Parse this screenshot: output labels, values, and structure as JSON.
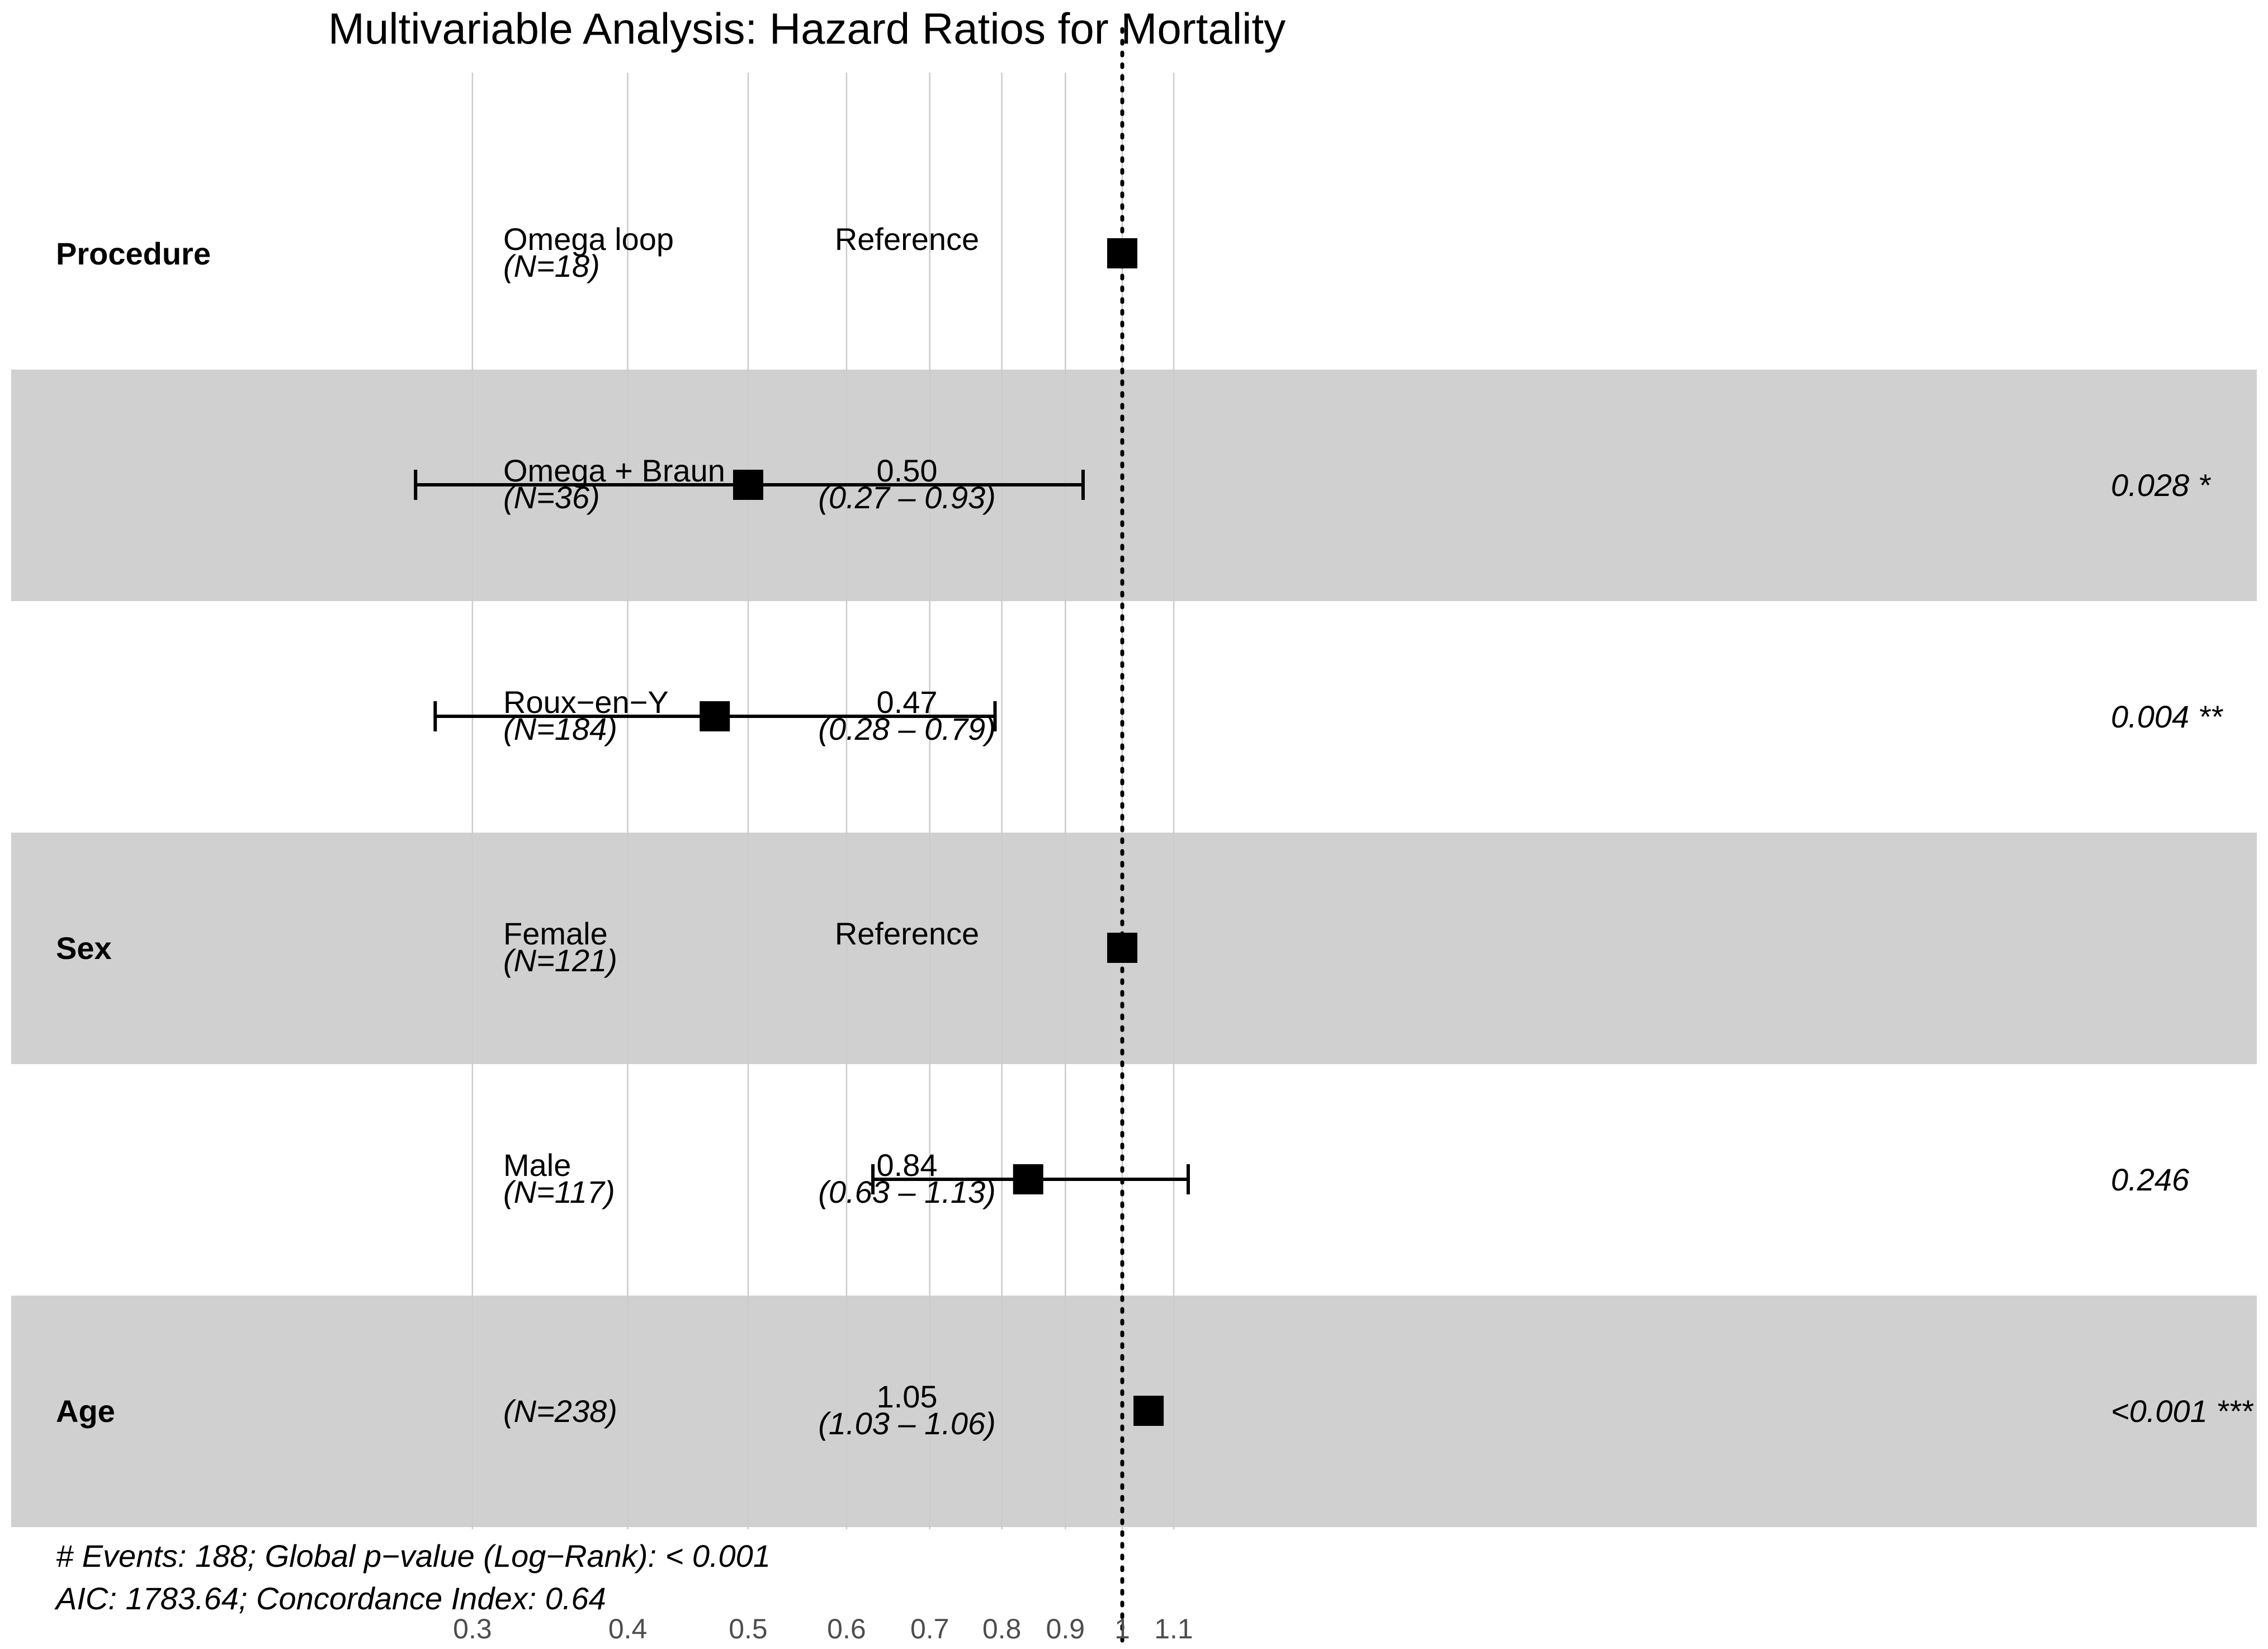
{
  "colors": {
    "band": "#d0d0d0",
    "grid": "#cccccc",
    "mark": "#000000",
    "background": "#ffffff"
  },
  "chart_data": {
    "type": "forest",
    "title": "Multivariable Analysis: Hazard Ratios for Mortality",
    "xscale": "log",
    "xlim": [
      0.27,
      1.27
    ],
    "reference_line": 1,
    "ticks": [
      0.3,
      0.4,
      0.5,
      0.6,
      0.7,
      0.8,
      0.9,
      1,
      1.1
    ],
    "tick_labels": [
      "0.3",
      "0.4",
      "0.5",
      "0.6",
      "0.7",
      "0.8",
      "0.9",
      "1",
      "1.1"
    ],
    "rows": [
      {
        "variable": "Procedure",
        "level": "Omega loop",
        "n": "(N=18)",
        "hr_text": "Reference",
        "ci_text": "",
        "p_text": "",
        "estimate": 1,
        "lower": null,
        "upper": null
      },
      {
        "variable": "",
        "level": "Omega + Braun",
        "n": "(N=36)",
        "hr_text": "0.50",
        "ci_text": "(0.27 – 0.93)",
        "p_text": "0.028 *",
        "estimate": 0.5,
        "lower": 0.27,
        "upper": 0.93
      },
      {
        "variable": "",
        "level": "Roux−en−Y",
        "n": "(N=184)",
        "hr_text": "0.47",
        "ci_text": "(0.28 – 0.79)",
        "p_text": "0.004 **",
        "estimate": 0.47,
        "lower": 0.28,
        "upper": 0.79
      },
      {
        "variable": "Sex",
        "level": "Female",
        "n": "(N=121)",
        "hr_text": "Reference",
        "ci_text": "",
        "p_text": "",
        "estimate": 1,
        "lower": null,
        "upper": null
      },
      {
        "variable": "",
        "level": "Male",
        "n": "(N=117)",
        "hr_text": "0.84",
        "ci_text": "(0.63 – 1.13)",
        "p_text": "0.246",
        "estimate": 0.84,
        "lower": 0.63,
        "upper": 1.13
      },
      {
        "variable": "Age",
        "level": "",
        "n": "(N=238)",
        "hr_text": "1.05",
        "ci_text": "(1.03 – 1.06)",
        "p_text": "<0.001 ***",
        "estimate": 1.05,
        "lower": 1.03,
        "upper": 1.06
      }
    ],
    "footnotes": [
      "# Events: 188; Global p−value (Log−Rank):  < 0.001",
      "AIC: 1783.64; Concordance Index: 0.64"
    ]
  }
}
